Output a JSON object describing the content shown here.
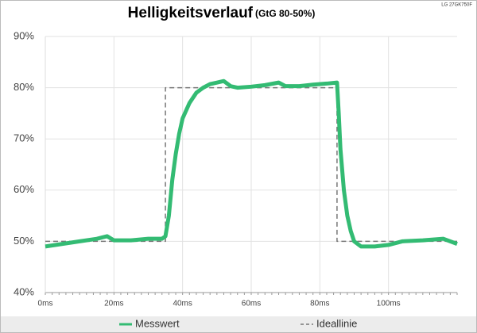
{
  "chart_data": {
    "type": "line",
    "title": "Helligkeitsverlauf",
    "subtitle": "(GtG 80-50%)",
    "annotation": "LG 27GK750F",
    "xlim": [
      0,
      120
    ],
    "xticks": [
      {
        "value": 0,
        "label": "0ms"
      },
      {
        "value": 20,
        "label": "20ms"
      },
      {
        "value": 40,
        "label": "40ms"
      },
      {
        "value": 60,
        "label": "60ms"
      },
      {
        "value": 80,
        "label": "80ms"
      },
      {
        "value": 100,
        "label": "100ms"
      }
    ],
    "ylim": [
      40,
      90
    ],
    "yticks": [
      {
        "value": 40,
        "label": "40%"
      },
      {
        "value": 50,
        "label": "50%"
      },
      {
        "value": 60,
        "label": "60%"
      },
      {
        "value": 70,
        "label": "70%"
      },
      {
        "value": 80,
        "label": "80%"
      },
      {
        "value": 90,
        "label": "90%"
      }
    ],
    "grid": true,
    "legend": "bottom",
    "series": [
      {
        "name": "Messwert",
        "color": "#33bb73",
        "dash": false,
        "x": [
          0,
          5,
          10,
          15,
          18,
          20,
          25,
          30,
          34,
          35,
          36,
          37,
          38,
          39,
          40,
          42,
          44,
          46,
          48,
          50,
          52,
          54,
          56,
          60,
          64,
          68,
          70,
          74,
          78,
          82,
          85,
          85.5,
          86,
          87,
          88,
          89,
          90,
          92,
          96,
          100,
          104,
          110,
          116,
          120
        ],
        "values": [
          49,
          49.5,
          50,
          50.5,
          51,
          50.2,
          50.2,
          50.5,
          50.5,
          51,
          55,
          62,
          67,
          71,
          74,
          77,
          79,
          80,
          80.7,
          81,
          81.3,
          80.3,
          80,
          80.2,
          80.5,
          81,
          80.3,
          80.3,
          80.6,
          80.8,
          81,
          75,
          68,
          60,
          55,
          52,
          50,
          49,
          49,
          49.3,
          50,
          50.2,
          50.5,
          49.5
        ]
      },
      {
        "name": "Ideallinie",
        "color": "#777777",
        "dash": true,
        "x": [
          0,
          35,
          35,
          85,
          85,
          120
        ],
        "values": [
          50,
          50,
          80,
          80,
          50,
          50
        ]
      }
    ]
  }
}
